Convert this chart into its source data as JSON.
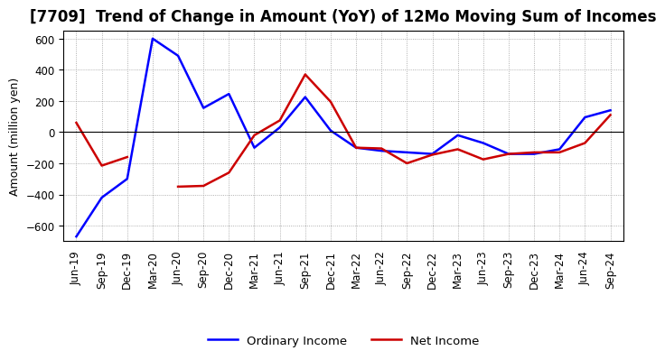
{
  "title": "[7709]  Trend of Change in Amount (YoY) of 12Mo Moving Sum of Incomes",
  "ylabel": "Amount (million yen)",
  "x_labels": [
    "Jun-19",
    "Sep-19",
    "Dec-19",
    "Mar-20",
    "Jun-20",
    "Sep-20",
    "Dec-20",
    "Mar-21",
    "Jun-21",
    "Sep-21",
    "Dec-21",
    "Mar-22",
    "Jun-22",
    "Sep-22",
    "Dec-22",
    "Mar-23",
    "Jun-23",
    "Sep-23",
    "Dec-23",
    "Mar-24",
    "Jun-24",
    "Sep-24"
  ],
  "ordinary_income": [
    -670,
    -420,
    -300,
    600,
    490,
    155,
    245,
    -100,
    30,
    225,
    10,
    -100,
    -120,
    -130,
    -140,
    -20,
    -70,
    -140,
    -140,
    -110,
    95,
    140
  ],
  "net_income": [
    60,
    -215,
    -160,
    null,
    -350,
    -345,
    -260,
    -20,
    75,
    370,
    195,
    -100,
    -105,
    -200,
    -145,
    -110,
    -175,
    -140,
    -130,
    -130,
    -70,
    110
  ],
  "ordinary_income_color": "#0000ff",
  "net_income_color": "#cc0000",
  "ylim": [
    -700,
    650
  ],
  "yticks": [
    -600,
    -400,
    -200,
    0,
    200,
    400,
    600
  ],
  "background_color": "#ffffff",
  "grid_color": "#aaaaaa",
  "legend_labels": [
    "Ordinary Income",
    "Net Income"
  ],
  "title_fontsize": 12,
  "label_fontsize": 9,
  "tick_fontsize": 8.5
}
